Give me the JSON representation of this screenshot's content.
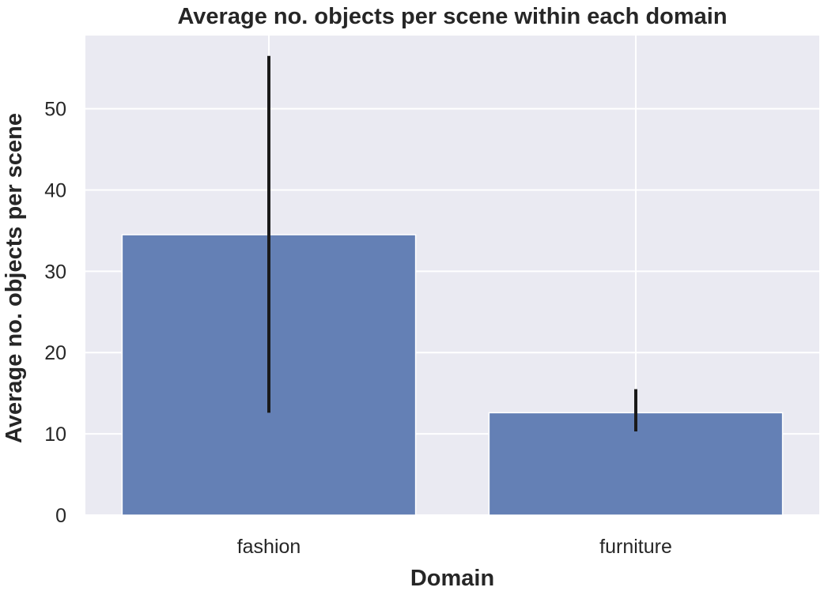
{
  "chart_data": {
    "type": "bar",
    "title": "Average no. objects per scene within each domain",
    "xlabel": "Domain",
    "ylabel": "Average no. objects per scene",
    "categories": [
      "fashion",
      "furniture"
    ],
    "values": [
      34.5,
      12.6
    ],
    "error_low": [
      12.6,
      10.3
    ],
    "error_high": [
      56.5,
      15.5
    ],
    "ylim": [
      0,
      59
    ],
    "yticks": [
      0,
      10,
      20,
      30,
      40,
      50
    ],
    "grid": true,
    "colors": {
      "background": "#eaeaf2",
      "grid": "#ffffff",
      "bar": "#6480b5",
      "error": "#1a1a1a",
      "text": "#262626"
    }
  }
}
